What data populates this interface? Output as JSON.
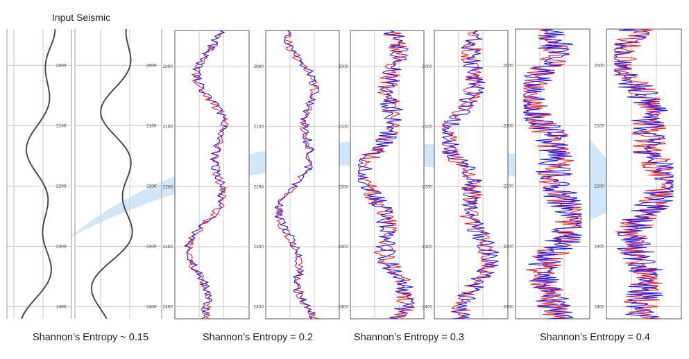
{
  "header": {
    "title": "Input Seismic"
  },
  "captions": {
    "c1": "Shannon’s Entropy ~ 0.15",
    "c2": "Shannon’s Entropy = 0.2",
    "c3": "Shannon’s Entropy = 0.3",
    "c4": "Shannon’s Entropy = 0.4"
  },
  "colors": {
    "input_trace": "#4a4a4a",
    "series_a": "#ff1a1a",
    "series_b": "#1a1aff",
    "arrow": "#cfe7fb",
    "grid": "#c8c8c8",
    "frame": "#555555"
  },
  "icons": {
    "arrow": "curved-arrow-icon"
  },
  "chart_data": [
    {
      "id": "input-1",
      "type": "line",
      "group": "Input Seismic",
      "orientation": "vertical",
      "ylim": [
        1940,
        2420
      ],
      "y_ticks": [
        2000,
        2100,
        2200,
        2300,
        2400
      ],
      "ytick_labels": [
        "2000",
        "2100",
        "2200",
        "2300",
        "2400"
      ],
      "series_count": 1,
      "roughness": 0
    },
    {
      "id": "input-2",
      "type": "line",
      "group": "Input Seismic",
      "orientation": "vertical",
      "ylim": [
        1940,
        2420
      ],
      "y_ticks": [
        2000,
        2100,
        2200,
        2300,
        2400
      ],
      "ytick_labels": [
        "2000",
        "2100",
        "2200",
        "2300",
        "2400"
      ],
      "series_count": 1,
      "roughness": 0
    },
    {
      "id": "entropy-0.2-a",
      "type": "line",
      "group": "Shannon’s Entropy = 0.2",
      "orientation": "vertical",
      "ylim": [
        1940,
        2420
      ],
      "y_ticks": [
        2000,
        2100,
        2200,
        2300,
        2400
      ],
      "ytick_labels": [
        "2000",
        "2100",
        "2200",
        "2300",
        "2400"
      ],
      "series_count": 2,
      "roughness": 0.25
    },
    {
      "id": "entropy-0.2-b",
      "type": "line",
      "group": "Shannon’s Entropy = 0.2",
      "orientation": "vertical",
      "ylim": [
        1940,
        2420
      ],
      "y_ticks": [
        2000,
        2100,
        2200,
        2300,
        2400
      ],
      "ytick_labels": [
        "2000",
        "2100",
        "2200",
        "2300",
        "2400"
      ],
      "series_count": 2,
      "roughness": 0.25
    },
    {
      "id": "entropy-0.3-a",
      "type": "line",
      "group": "Shannon’s Entropy = 0.3",
      "orientation": "vertical",
      "ylim": [
        1940,
        2420
      ],
      "y_ticks": [
        2000,
        2100,
        2200,
        2300,
        2400
      ],
      "ytick_labels": [
        "2000",
        "2100",
        "2200",
        "2300",
        "2400"
      ],
      "series_count": 2,
      "roughness": 0.55
    },
    {
      "id": "entropy-0.3-b",
      "type": "line",
      "group": "Shannon’s Entropy = 0.3",
      "orientation": "vertical",
      "ylim": [
        1940,
        2420
      ],
      "y_ticks": [
        2000,
        2100,
        2200,
        2300,
        2400
      ],
      "ytick_labels": [
        "2000",
        "2100",
        "2200",
        "2300",
        "2400"
      ],
      "series_count": 2,
      "roughness": 0.55
    },
    {
      "id": "entropy-0.4-a",
      "type": "line",
      "group": "Shannon’s Entropy = 0.4",
      "orientation": "vertical",
      "ylim": [
        1940,
        2420
      ],
      "y_ticks": [
        2000,
        2100,
        2200,
        2300,
        2400
      ],
      "ytick_labels": [
        "2000",
        "2100",
        "2200",
        "2300",
        "2400"
      ],
      "series_count": 2,
      "roughness": 0.9
    },
    {
      "id": "entropy-0.4-b",
      "type": "line",
      "group": "Shannon’s Entropy = 0.4",
      "orientation": "vertical",
      "ylim": [
        1940,
        2420
      ],
      "y_ticks": [
        2000,
        2100,
        2200,
        2300,
        2400
      ],
      "ytick_labels": [
        "2000",
        "2100",
        "2200",
        "2300",
        "2400"
      ],
      "series_count": 2,
      "roughness": 0.9
    }
  ]
}
